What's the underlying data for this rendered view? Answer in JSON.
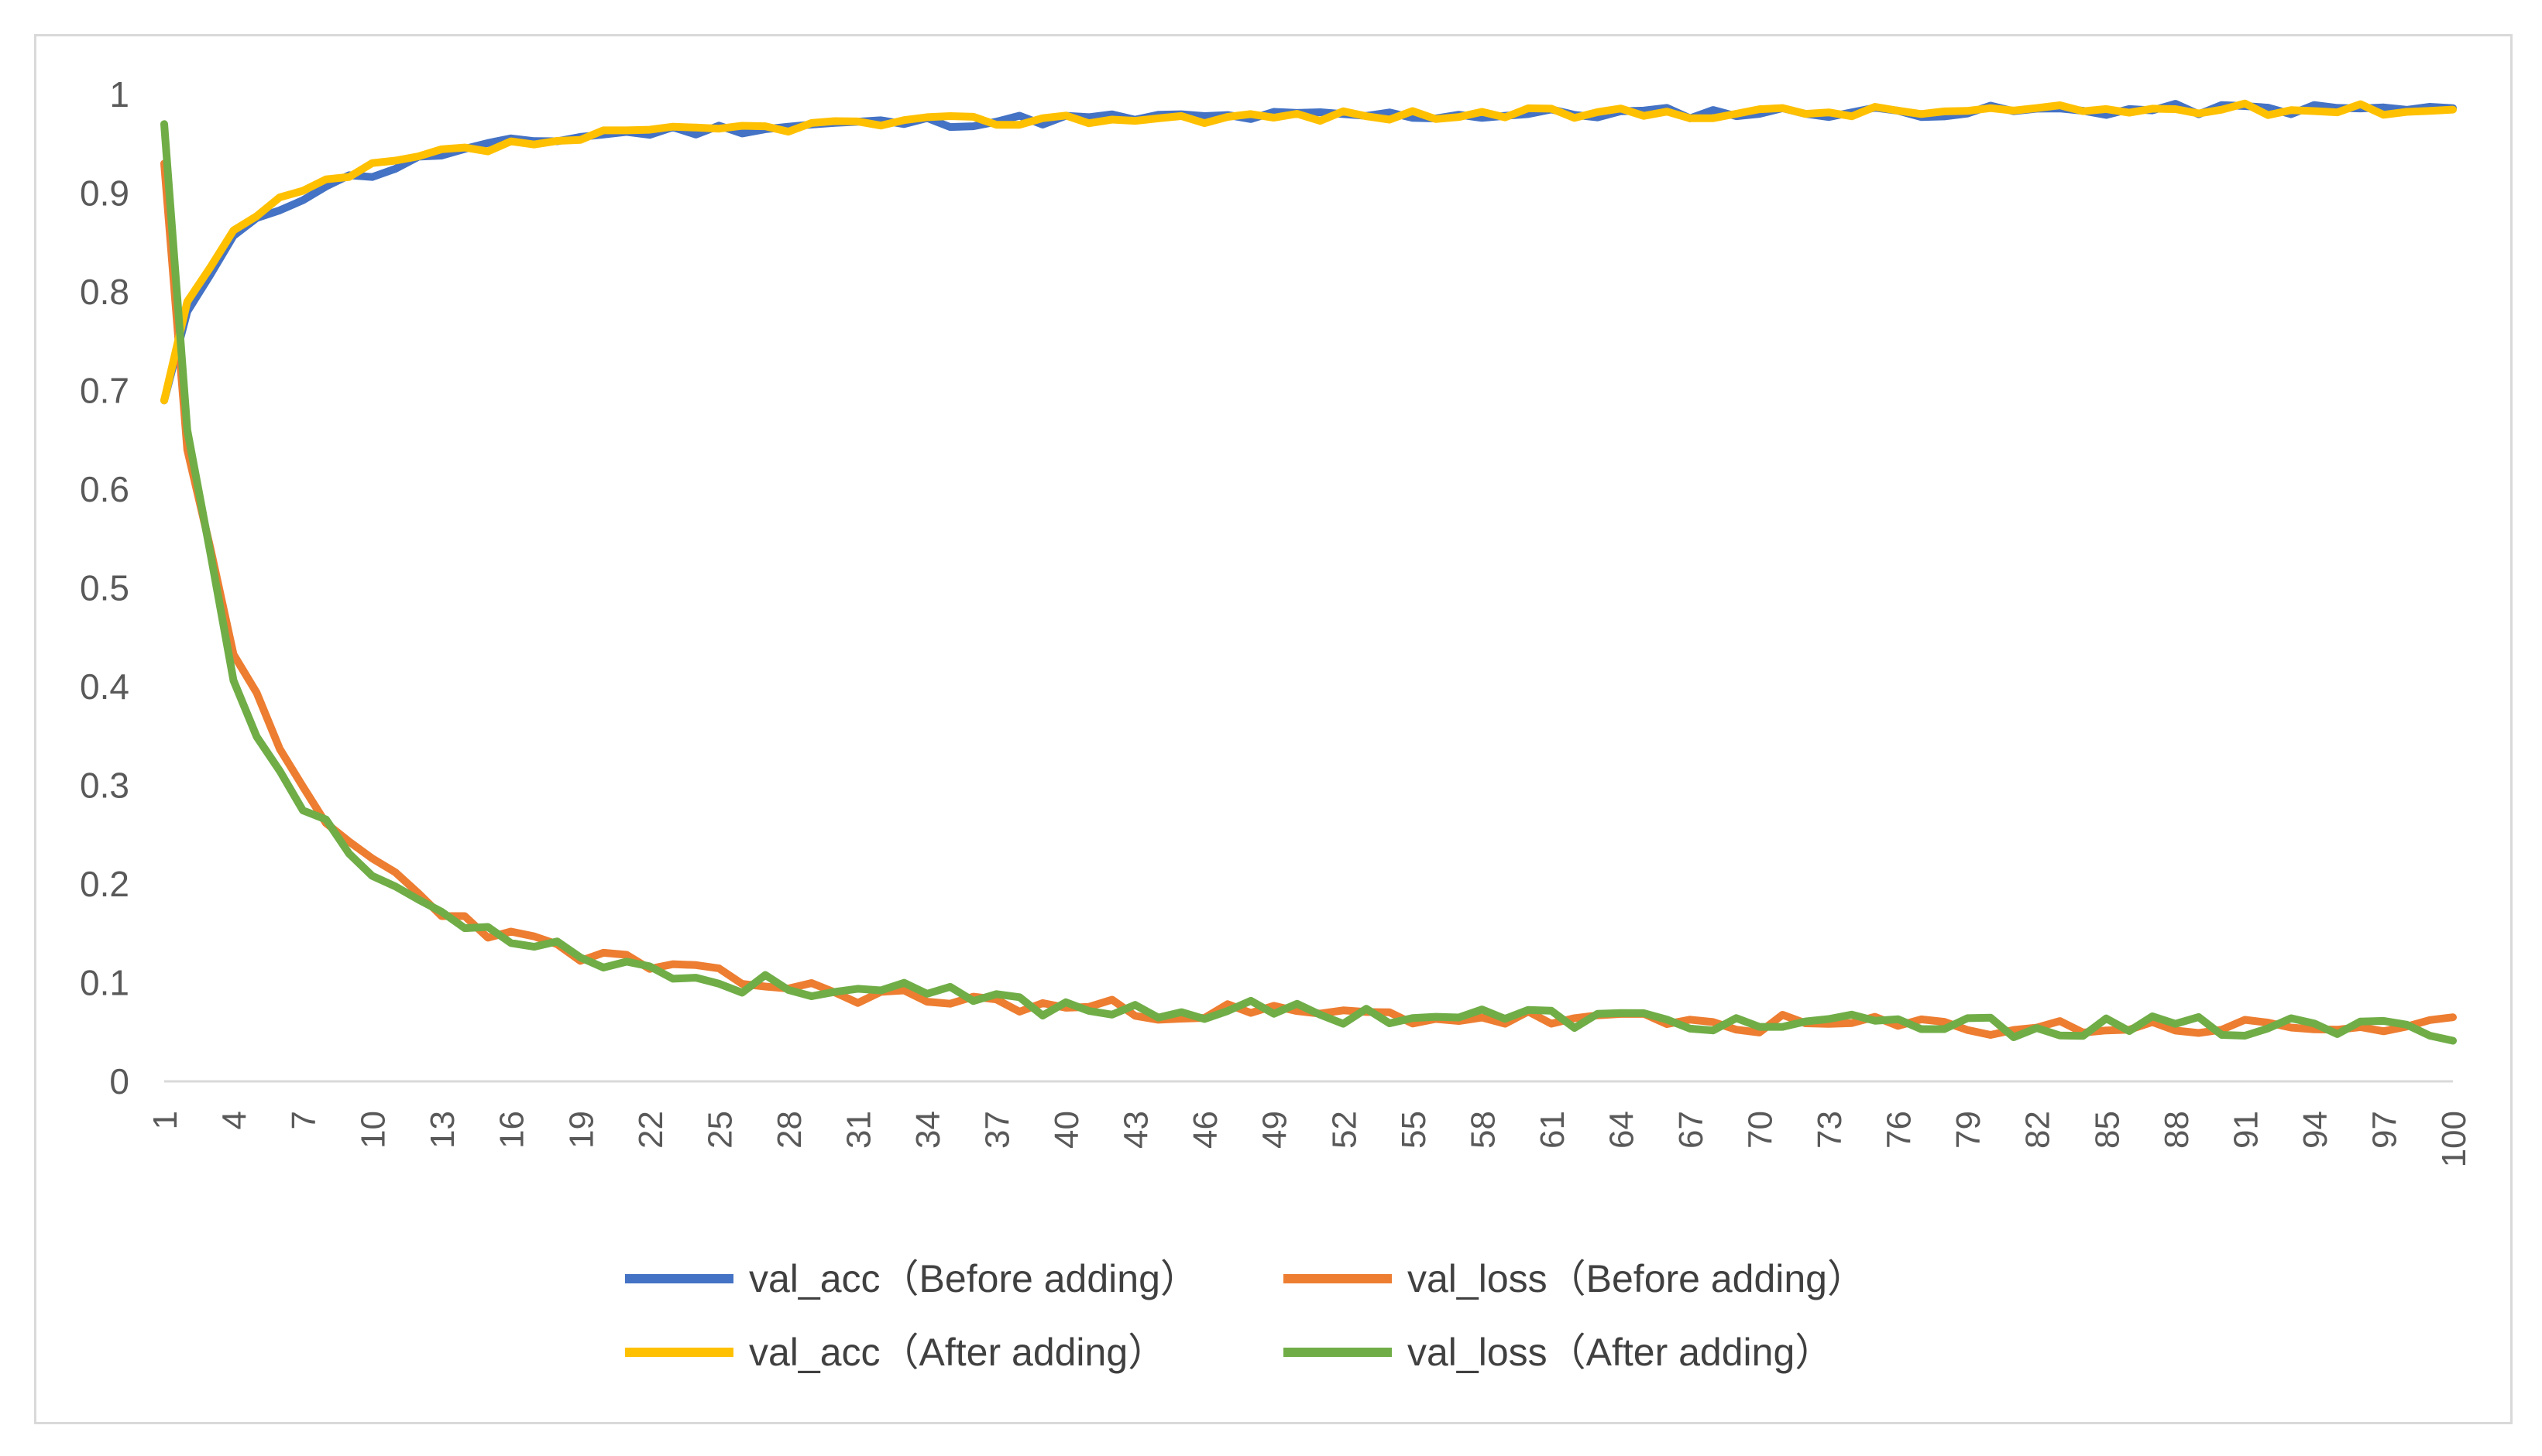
{
  "chart_data": {
    "type": "line",
    "title": "",
    "xlabel": "",
    "ylabel": "",
    "ylim": [
      0,
      1
    ],
    "y_ticks": [
      "0",
      "0.1",
      "0.2",
      "0.3",
      "0.4",
      "0.5",
      "0.6",
      "0.7",
      "0.8",
      "0.9",
      "1"
    ],
    "x_tick_labels": [
      "1",
      "4",
      "7",
      "10",
      "13",
      "16",
      "19",
      "22",
      "25",
      "28",
      "31",
      "34",
      "37",
      "40",
      "43",
      "46",
      "49",
      "52",
      "55",
      "58",
      "61",
      "64",
      "67",
      "70",
      "73",
      "76",
      "79",
      "82",
      "85",
      "88",
      "91",
      "94",
      "97",
      "100"
    ],
    "grid": "horizontal-none",
    "legend_position": "bottom",
    "x_waypoints": [
      1,
      2,
      4,
      6,
      8,
      10,
      13,
      16,
      20,
      25,
      30,
      40,
      50,
      60,
      70,
      80,
      90,
      100
    ],
    "series": [
      {
        "name": "val_acc（Before adding）",
        "color": "#4472c4",
        "waypoints": [
          0.69,
          0.78,
          0.855,
          0.885,
          0.91,
          0.92,
          0.94,
          0.95,
          0.96,
          0.965,
          0.97,
          0.975,
          0.978,
          0.98,
          0.982,
          0.983,
          0.985,
          0.985
        ]
      },
      {
        "name": "val_loss（Before adding）",
        "color": "#ed7d31",
        "waypoints": [
          0.93,
          0.64,
          0.44,
          0.33,
          0.26,
          0.225,
          0.175,
          0.145,
          0.125,
          0.105,
          0.09,
          0.075,
          0.068,
          0.063,
          0.058,
          0.055,
          0.055,
          0.055
        ]
      },
      {
        "name": "val_acc（After adding）",
        "color": "#ffc000",
        "waypoints": [
          0.69,
          0.79,
          0.86,
          0.89,
          0.91,
          0.925,
          0.94,
          0.948,
          0.958,
          0.965,
          0.97,
          0.975,
          0.978,
          0.98,
          0.982,
          0.983,
          0.985,
          0.985
        ]
      },
      {
        "name": "val_loss（After adding）",
        "color": "#70ad47",
        "waypoints": [
          0.97,
          0.66,
          0.41,
          0.31,
          0.255,
          0.21,
          0.17,
          0.15,
          0.125,
          0.1,
          0.095,
          0.075,
          0.07,
          0.065,
          0.058,
          0.055,
          0.055,
          0.052
        ]
      }
    ]
  }
}
